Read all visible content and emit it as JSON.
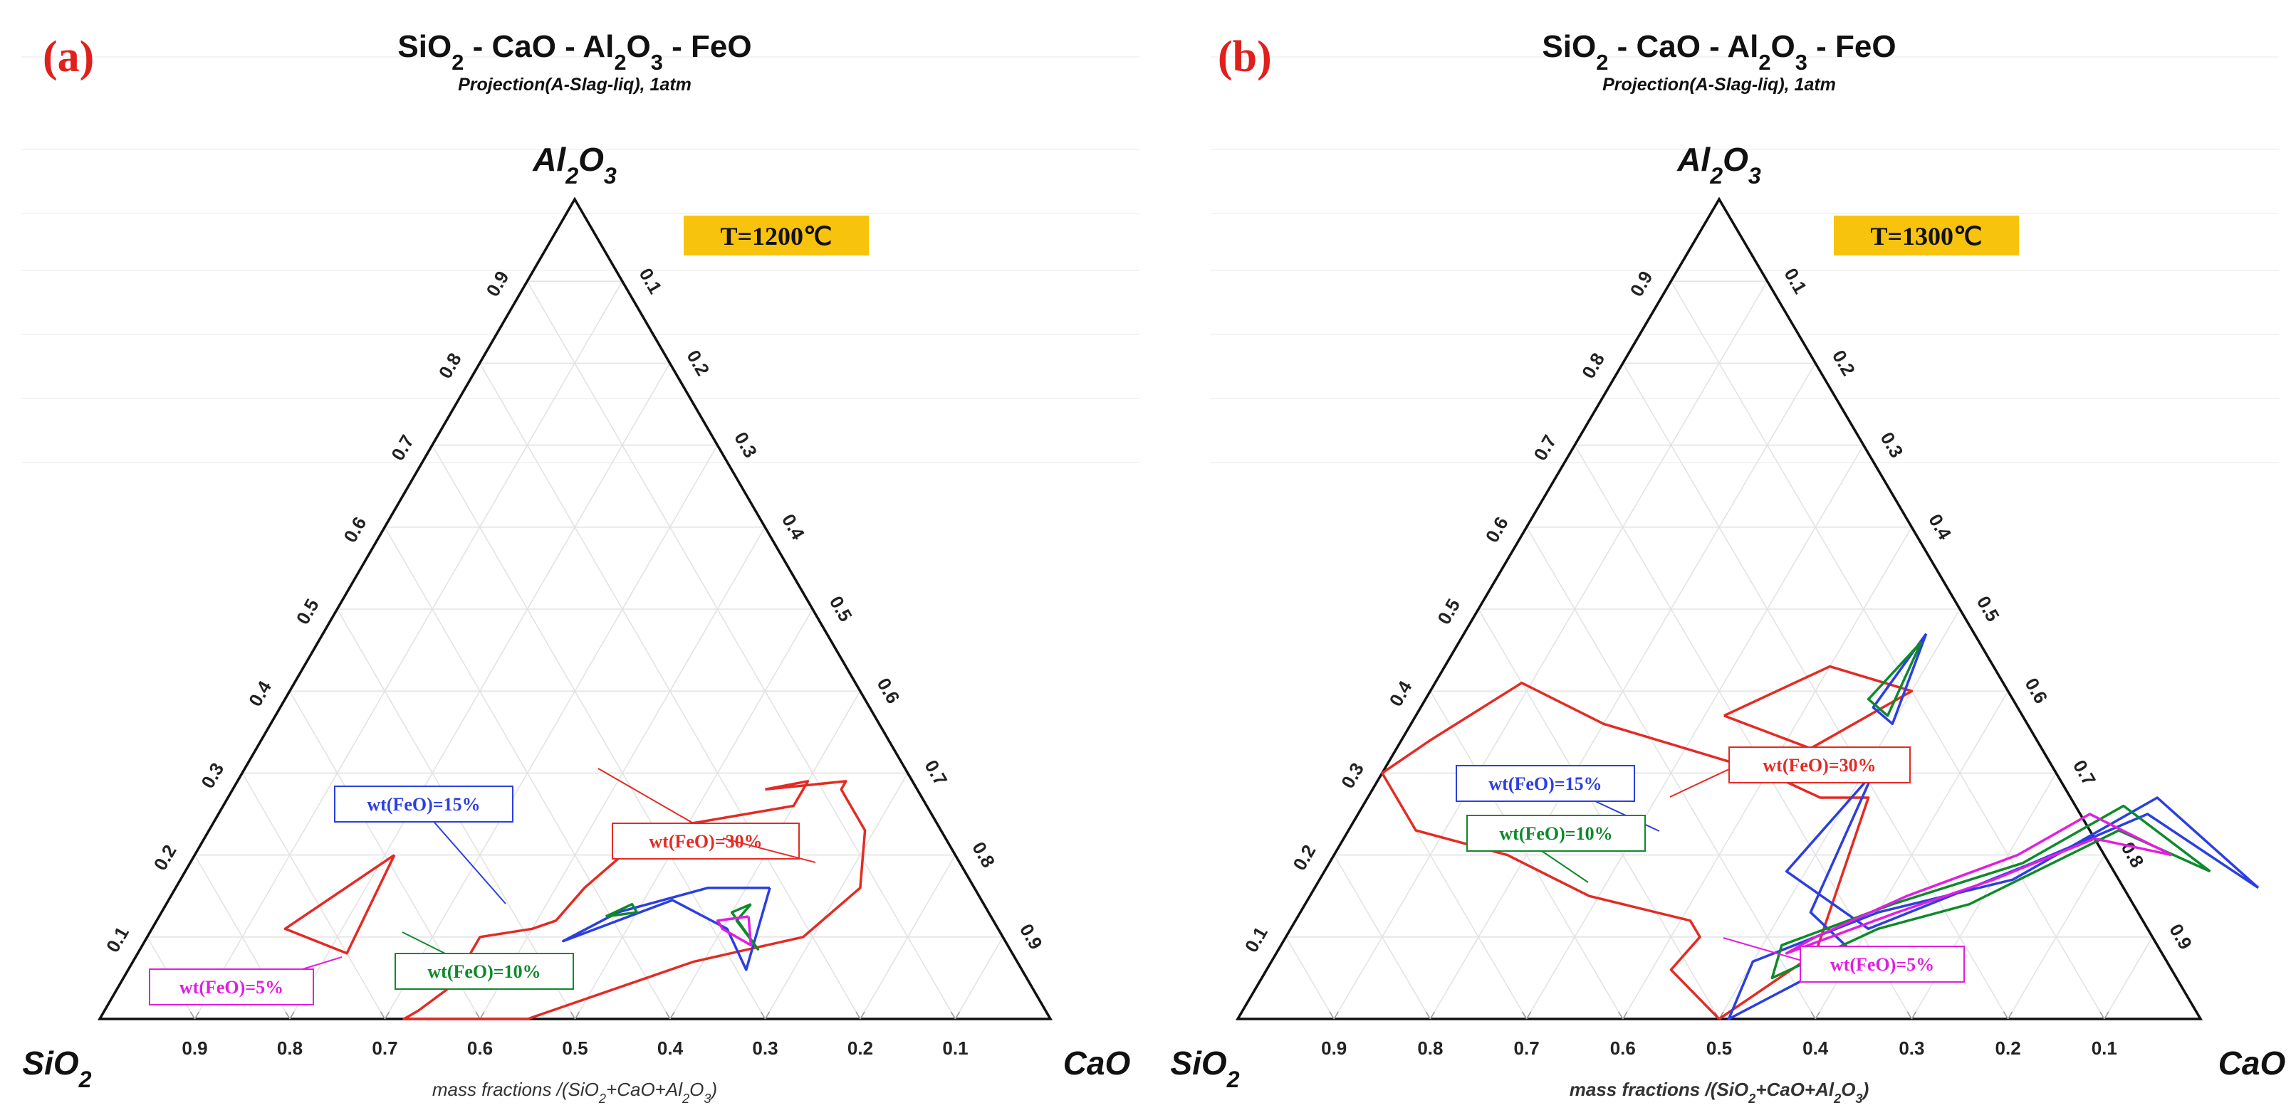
{
  "chart_data": [
    {
      "type": "ternary",
      "panel_label": "(a)",
      "title_parts": [
        "SiO",
        "2",
        " - CaO - Al",
        "2",
        "O",
        "3",
        " - FeO"
      ],
      "subtitle": "Projection(A-Slag-liq), 1atm",
      "temperature_label": "T=1200℃",
      "vertices": {
        "top": [
          "Al",
          "2",
          "O",
          "3"
        ],
        "left": [
          "SiO",
          "2"
        ],
        "right": [
          "CaO"
        ]
      },
      "left_ticks": [
        "0.1",
        "0.2",
        "0.3",
        "0.4",
        "0.5",
        "0.6",
        "0.7",
        "0.8",
        "0.9"
      ],
      "right_ticks": [
        "0.1",
        "0.2",
        "0.3",
        "0.4",
        "0.5",
        "0.6",
        "0.7",
        "0.8",
        "0.9"
      ],
      "bottom_ticks": [
        "0.9",
        "0.8",
        "0.7",
        "0.6",
        "0.5",
        "0.4",
        "0.3",
        "0.2",
        "0.1"
      ],
      "xlabel_parts": [
        "mass fractions /(SiO",
        "2",
        "+CaO+Al",
        "2",
        "O",
        "3",
        ")"
      ],
      "series": [
        {
          "name": "wt(FeO)=30%",
          "color": "#e32b24",
          "label": "wt(FeO)=30%",
          "paths": [
            [
              [
                0.56,
                0.28
              ],
              [
                0.6,
                0.29
              ],
              [
                0.6,
                0.26
              ],
              [
                0.51,
                0.24
              ],
              [
                0.46,
                0.23
              ],
              [
                0.45,
                0.2
              ],
              [
                0.43,
                0.16
              ],
              [
                0.42,
                0.12
              ],
              [
                0.4,
                0.11
              ],
              [
                0.35,
                0.1
              ],
              [
                0.35,
                0.04
              ],
              [
                0.33,
                0.01
              ],
              [
                0.32,
                0.0
              ],
              [
                0.45,
                0.0
              ],
              [
                0.59,
                0.07
              ],
              [
                0.69,
                0.1
              ],
              [
                0.72,
                0.16
              ],
              [
                0.69,
                0.23
              ],
              [
                0.64,
                0.28
              ],
              [
                0.64,
                0.29
              ],
              [
                0.56,
                0.28
              ]
            ],
            [
              [
                0.21,
                0.2
              ],
              [
                0.14,
                0.11
              ],
              [
                0.22,
                0.08
              ],
              [
                0.21,
                0.2
              ]
            ]
          ]
        },
        {
          "name": "wt(FeO)=15%",
          "color": "#2b3fe0",
          "label": "wt(FeO)=15%",
          "paths": [
            [
              [
                0.625,
                0.16
              ],
              [
                0.56,
                0.16
              ],
              [
                0.48,
                0.13
              ],
              [
                0.44,
                0.095
              ],
              [
                0.53,
                0.145
              ],
              [
                0.605,
                0.11
              ],
              [
                0.65,
                0.06
              ],
              [
                0.625,
                0.16
              ]
            ]
          ]
        },
        {
          "name": "wt(FeO)=10%",
          "color": "#0d8a2a",
          "label": "wt(FeO)=10%",
          "paths": [
            [
              [
                0.615,
                0.14
              ],
              [
                0.6,
                0.13
              ],
              [
                0.65,
                0.085
              ],
              [
                0.61,
                0.12
              ],
              [
                0.615,
                0.14
              ]
            ],
            [
              [
                0.47,
                0.125
              ],
              [
                0.5,
                0.13
              ],
              [
                0.49,
                0.14
              ],
              [
                0.47,
                0.125
              ]
            ]
          ]
        },
        {
          "name": "wt(FeO)=5%",
          "color": "#e21ee0",
          "label": "wt(FeO)=5%",
          "paths": [
            [
              [
                0.62,
                0.125
              ],
              [
                0.59,
                0.12
              ],
              [
                0.6,
                0.11
              ],
              [
                0.64,
                0.09
              ],
              [
                0.62,
                0.125
              ]
            ]
          ]
        }
      ]
    },
    {
      "type": "ternary",
      "panel_label": "(b)",
      "title_parts": [
        "SiO",
        "2",
        " - CaO - Al",
        "2",
        "O",
        "3",
        " - FeO"
      ],
      "subtitle": "Projection(A-Slag-liq), 1atm",
      "temperature_label": "T=1300℃",
      "vertices": {
        "top": [
          "Al",
          "2",
          "O",
          "3"
        ],
        "left": [
          "SiO",
          "2"
        ],
        "right": [
          "CaO"
        ]
      },
      "left_ticks": [
        "0.1",
        "0.2",
        "0.3",
        "0.4",
        "0.5",
        "0.6",
        "0.7",
        "0.8",
        "0.9"
      ],
      "right_ticks": [
        "0.1",
        "0.2",
        "0.3",
        "0.4",
        "0.5",
        "0.6",
        "0.7",
        "0.8",
        "0.9"
      ],
      "bottom_ticks": [
        "0.9",
        "0.8",
        "0.7",
        "0.6",
        "0.5",
        "0.4",
        "0.3",
        "0.2",
        "0.1"
      ],
      "xlabel_parts": [
        "mass fractions /(SiO",
        "2",
        "+CaO+Al",
        "2",
        "O",
        "3",
        ")"
      ],
      "series": [
        {
          "name": "wt(FeO)=30%",
          "color": "#e32b24",
          "label": "wt(FeO)=30%",
          "paths": [
            [
              [
                0.5,
                0.0
              ],
              [
                0.56,
                0.08
              ],
              [
                0.52,
                0.27
              ],
              [
                0.47,
                0.27
              ],
              [
                0.4,
                0.3
              ],
              [
                0.2,
                0.36
              ],
              [
                0.09,
                0.41
              ],
              [
                0.03,
                0.34
              ],
              [
                0.0,
                0.3
              ],
              [
                0.07,
                0.23
              ],
              [
                0.18,
                0.2
              ],
              [
                0.29,
                0.15
              ],
              [
                0.41,
                0.12
              ],
              [
                0.43,
                0.1
              ],
              [
                0.42,
                0.06
              ],
              [
                0.5,
                0.0
              ]
            ],
            [
              [
                0.32,
                0.37
              ],
              [
                0.4,
                0.43
              ],
              [
                0.5,
                0.4
              ],
              [
                0.43,
                0.33
              ],
              [
                0.32,
                0.37
              ]
            ]
          ]
        },
        {
          "name": "wt(FeO)=15%",
          "color": "#2b3fe0",
          "label": "wt(FeO)=15%",
          "paths": [
            [
              [
                0.98,
                0.16
              ],
              [
                0.82,
                0.27
              ],
              [
                0.72,
                0.17
              ],
              [
                0.6,
                0.13
              ],
              [
                0.5,
                0.07
              ],
              [
                0.51,
                0.0
              ],
              [
                0.6,
                0.08
              ],
              [
                0.53,
                0.13
              ],
              [
                0.51,
                0.3
              ],
              [
                0.48,
                0.18
              ],
              [
                0.6,
                0.11
              ],
              [
                0.73,
                0.19
              ],
              [
                0.82,
                0.25
              ],
              [
                0.98,
                0.16
              ]
            ],
            [
              [
                0.48,
                0.47
              ],
              [
                0.47,
                0.38
              ],
              [
                0.5,
                0.36
              ],
              [
                0.48,
                0.47
              ]
            ]
          ]
        },
        {
          "name": "wt(FeO)=10%",
          "color": "#0d8a2a",
          "label": "wt(FeO)=10%",
          "paths": [
            [
              [
                0.92,
                0.18
              ],
              [
                0.79,
                0.26
              ],
              [
                0.72,
                0.19
              ],
              [
                0.61,
                0.14
              ],
              [
                0.52,
                0.09
              ],
              [
                0.53,
                0.05
              ],
              [
                0.61,
                0.11
              ],
              [
                0.69,
                0.14
              ],
              [
                0.8,
                0.23
              ],
              [
                0.92,
                0.18
              ]
            ],
            [
              [
                0.48,
                0.46
              ],
              [
                0.46,
                0.39
              ],
              [
                0.49,
                0.37
              ],
              [
                0.48,
                0.46
              ]
            ]
          ]
        },
        {
          "name": "wt(FeO)=5%",
          "color": "#e21ee0",
          "label": "wt(FeO)=5%",
          "paths": [
            [
              [
                0.87,
                0.2
              ],
              [
                0.76,
                0.25
              ],
              [
                0.71,
                0.2
              ],
              [
                0.62,
                0.15
              ],
              [
                0.55,
                0.1
              ],
              [
                0.53,
                0.08
              ],
              [
                0.62,
                0.13
              ],
              [
                0.7,
                0.17
              ],
              [
                0.78,
                0.22
              ],
              [
                0.87,
                0.2
              ]
            ]
          ]
        }
      ]
    }
  ]
}
